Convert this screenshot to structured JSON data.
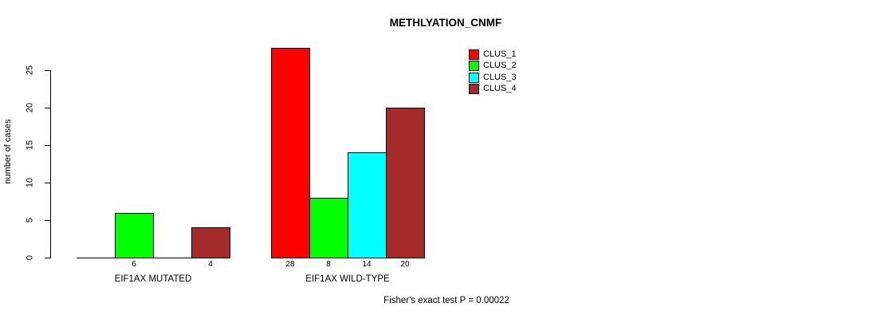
{
  "chart_data": {
    "type": "bar",
    "title": "METHLYATION_CNMF",
    "ylabel": "number of cases",
    "xlabel": "",
    "footer": "Fisher's exact test P = 0.00022",
    "groups": [
      "EIF1AX MUTATED",
      "EIF1AX WILD-TYPE"
    ],
    "series": [
      {
        "name": "CLUS_1",
        "color": "#FF0000",
        "values": [
          0,
          28
        ]
      },
      {
        "name": "CLUS_2",
        "color": "#00FF00",
        "values": [
          6,
          8
        ]
      },
      {
        "name": "CLUS_3",
        "color": "#00FFFF",
        "values": [
          0,
          14
        ]
      },
      {
        "name": "CLUS_4",
        "color": "#A52A2A",
        "values": [
          4,
          20
        ]
      }
    ],
    "visible_bar_value_labels": [
      6,
      4,
      28,
      8,
      14,
      20
    ],
    "yticks": [
      0,
      5,
      10,
      15,
      20,
      25
    ],
    "ylim": [
      0,
      28
    ],
    "grid": false,
    "legend_position": "top-right",
    "bar_border_color": "#000000",
    "axis_color": "#000000",
    "background_color": "#FFFFFF"
  }
}
